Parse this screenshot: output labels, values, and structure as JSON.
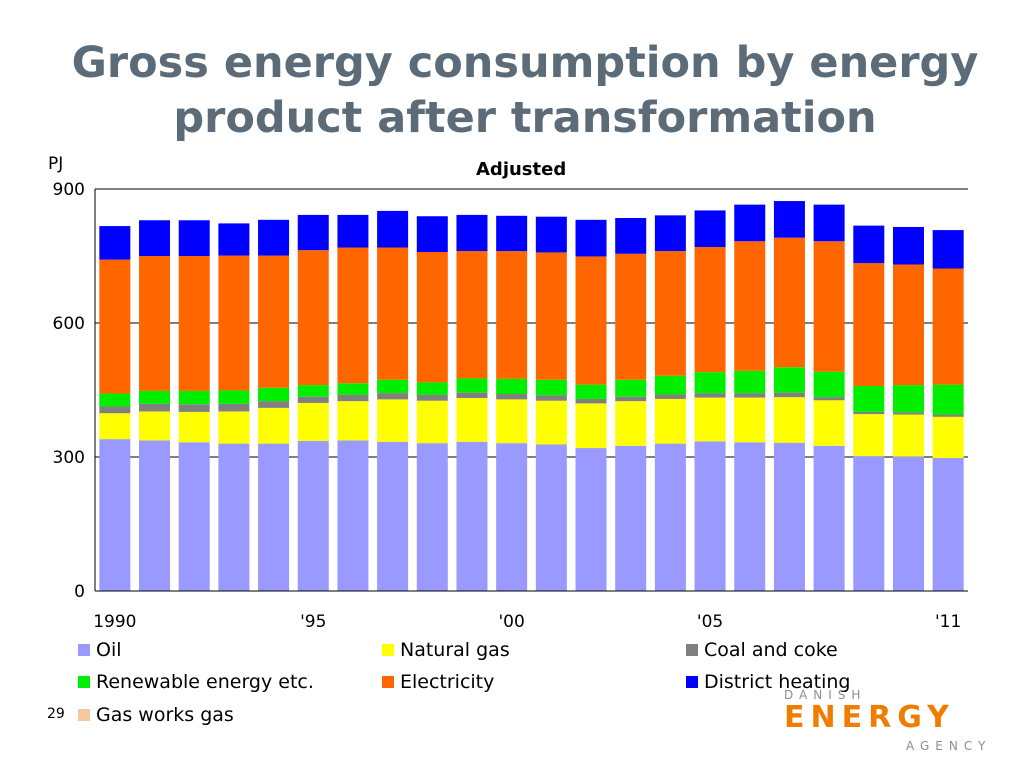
{
  "page": {
    "title_line1": "Gross energy consumption by energy",
    "title_line2": "product after transformation",
    "page_number": "29"
  },
  "logo": {
    "top_word": "DANISH",
    "main_word": "ENERGY",
    "bottom_word": "AGENCY"
  },
  "chart_data": {
    "type": "bar",
    "stacked": true,
    "title": "Adjusted",
    "ylabel": "PJ",
    "ylim": [
      0,
      900
    ],
    "yticks": [
      0,
      300,
      600,
      900
    ],
    "grid": true,
    "legend_position": "bottom",
    "categories": [
      "1990",
      "1991",
      "1992",
      "1993",
      "1994",
      "1995",
      "1996",
      "1997",
      "1998",
      "1999",
      "2000",
      "2001",
      "2002",
      "2003",
      "2004",
      "2005",
      "2006",
      "2007",
      "2008",
      "2009",
      "2010",
      "2011"
    ],
    "x_tick_labels": [
      {
        "category": "1990",
        "label": "1990"
      },
      {
        "category": "1995",
        "label": "'95"
      },
      {
        "category": "2000",
        "label": "'00"
      },
      {
        "category": "2005",
        "label": "'05"
      },
      {
        "category": "2011",
        "label": "'11"
      }
    ],
    "series": [
      {
        "name": "Oil",
        "color": "#9999ff",
        "values": [
          340,
          337,
          333,
          330,
          330,
          336,
          337,
          334,
          331,
          334,
          331,
          328,
          320,
          325,
          330,
          335,
          333,
          332,
          325,
          302,
          301,
          298
        ]
      },
      {
        "name": "Natural gas",
        "color": "#ffff00",
        "values": [
          58,
          65,
          68,
          72,
          80,
          85,
          88,
          95,
          95,
          98,
          98,
          98,
          100,
          100,
          100,
          98,
          100,
          102,
          102,
          94,
          94,
          92
        ]
      },
      {
        "name": "Coal and coke",
        "color": "#808080",
        "values": [
          15,
          17,
          17,
          17,
          15,
          14,
          14,
          14,
          13,
          12,
          12,
          12,
          10,
          10,
          10,
          10,
          10,
          10,
          7,
          5,
          5,
          5
        ]
      },
      {
        "name": "Renewable energy etc.",
        "color": "#00ee00",
        "values": [
          29,
          29,
          30,
          30,
          30,
          26,
          26,
          30,
          28,
          32,
          34,
          35,
          32,
          38,
          42,
          47,
          50,
          57,
          57,
          58,
          61,
          67
        ]
      },
      {
        "name": "Electricity",
        "color": "#ff6600",
        "values": [
          300,
          302,
          302,
          302,
          296,
          302,
          304,
          296,
          292,
          285,
          286,
          285,
          287,
          282,
          279,
          280,
          290,
          290,
          292,
          275,
          270,
          260
        ]
      },
      {
        "name": "District heating",
        "color": "#0000ff",
        "values": [
          75,
          80,
          80,
          72,
          80,
          79,
          73,
          82,
          80,
          81,
          79,
          80,
          82,
          80,
          80,
          82,
          82,
          82,
          82,
          84,
          84,
          86
        ]
      },
      {
        "name": "Gas works gas",
        "color": "#f5c8a0",
        "values": [
          0,
          0,
          0,
          0,
          0,
          0,
          0,
          0,
          0,
          0,
          0,
          0,
          0,
          0,
          0,
          0,
          0,
          0,
          0,
          0,
          0,
          0
        ]
      }
    ]
  }
}
